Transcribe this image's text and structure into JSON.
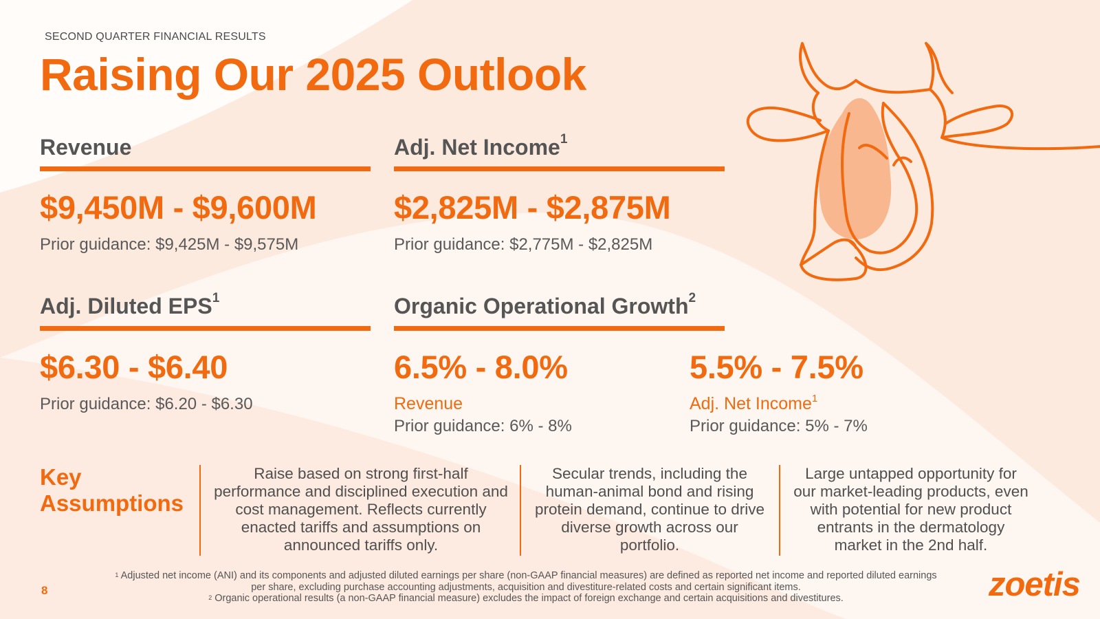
{
  "header": {
    "eyebrow": "SECOND QUARTER FINANCIAL RESULTS",
    "title": "Raising Our 2025 Outlook"
  },
  "sections": {
    "revenue": {
      "heading": "Revenue",
      "range": "$9,450M - $9,600M",
      "prior": "Prior guidance: $9,425M - $9,575M"
    },
    "net_income": {
      "heading": "Adj. Net Income",
      "footnote_mark": "1",
      "range": "$2,825M - $2,875M",
      "prior": "Prior guidance: $2,775M - $2,825M"
    },
    "eps": {
      "heading": "Adj. Diluted EPS",
      "footnote_mark": "1",
      "range": "$6.30 - $6.40",
      "prior": "Prior guidance: $6.20 - $6.30"
    },
    "organic": {
      "heading": "Organic Operational Growth",
      "footnote_mark": "2",
      "revenue": {
        "range": "6.5% - 8.0%",
        "label": "Revenue",
        "prior": "Prior guidance: 6% - 8%"
      },
      "net_income": {
        "range": "5.5% - 7.5%",
        "label": "Adj. Net Income",
        "footnote_mark": "1",
        "prior": "Prior guidance: 5% - 7%"
      }
    }
  },
  "key_assumptions": {
    "heading_line1": "Key",
    "heading_line2": "Assumptions",
    "items": [
      {
        "lines": [
          "Raise based on strong first-half",
          "performance and disciplined execution and",
          "cost management. Reflects currently",
          "enacted tariffs and assumptions on",
          "announced tariffs only."
        ]
      },
      {
        "lines": [
          "Secular trends, including the",
          "human-animal bond and rising",
          "protein demand, continue to drive",
          "diverse growth across our",
          "portfolio."
        ]
      },
      {
        "lines": [
          "Large untapped opportunity for",
          "our market-leading products, even",
          "with potential for new product",
          "entrants in the dermatology",
          "market in the 2nd half."
        ]
      }
    ]
  },
  "footnotes": {
    "note1_mark": "1",
    "note1_line1": "Adjusted net income (ANI) and its components and adjusted diluted earnings per share (non-GAAP financial measures) are defined as reported net income and reported diluted earnings",
    "note1_line2": "per share, excluding purchase accounting adjustments, acquisition and divestiture-related costs and certain significant items.",
    "note2_mark": "2",
    "note2_line": "Organic operational results (a non-GAAP financial measure) excludes the impact of foreign exchange and certain acquisitions and divestitures."
  },
  "page_number": "8",
  "logo_text": "zoetis",
  "colors": {
    "accent": "#f26a10",
    "background": "#fdeadf",
    "text": "#595959"
  },
  "icons": [
    "cow-line-illustration"
  ]
}
